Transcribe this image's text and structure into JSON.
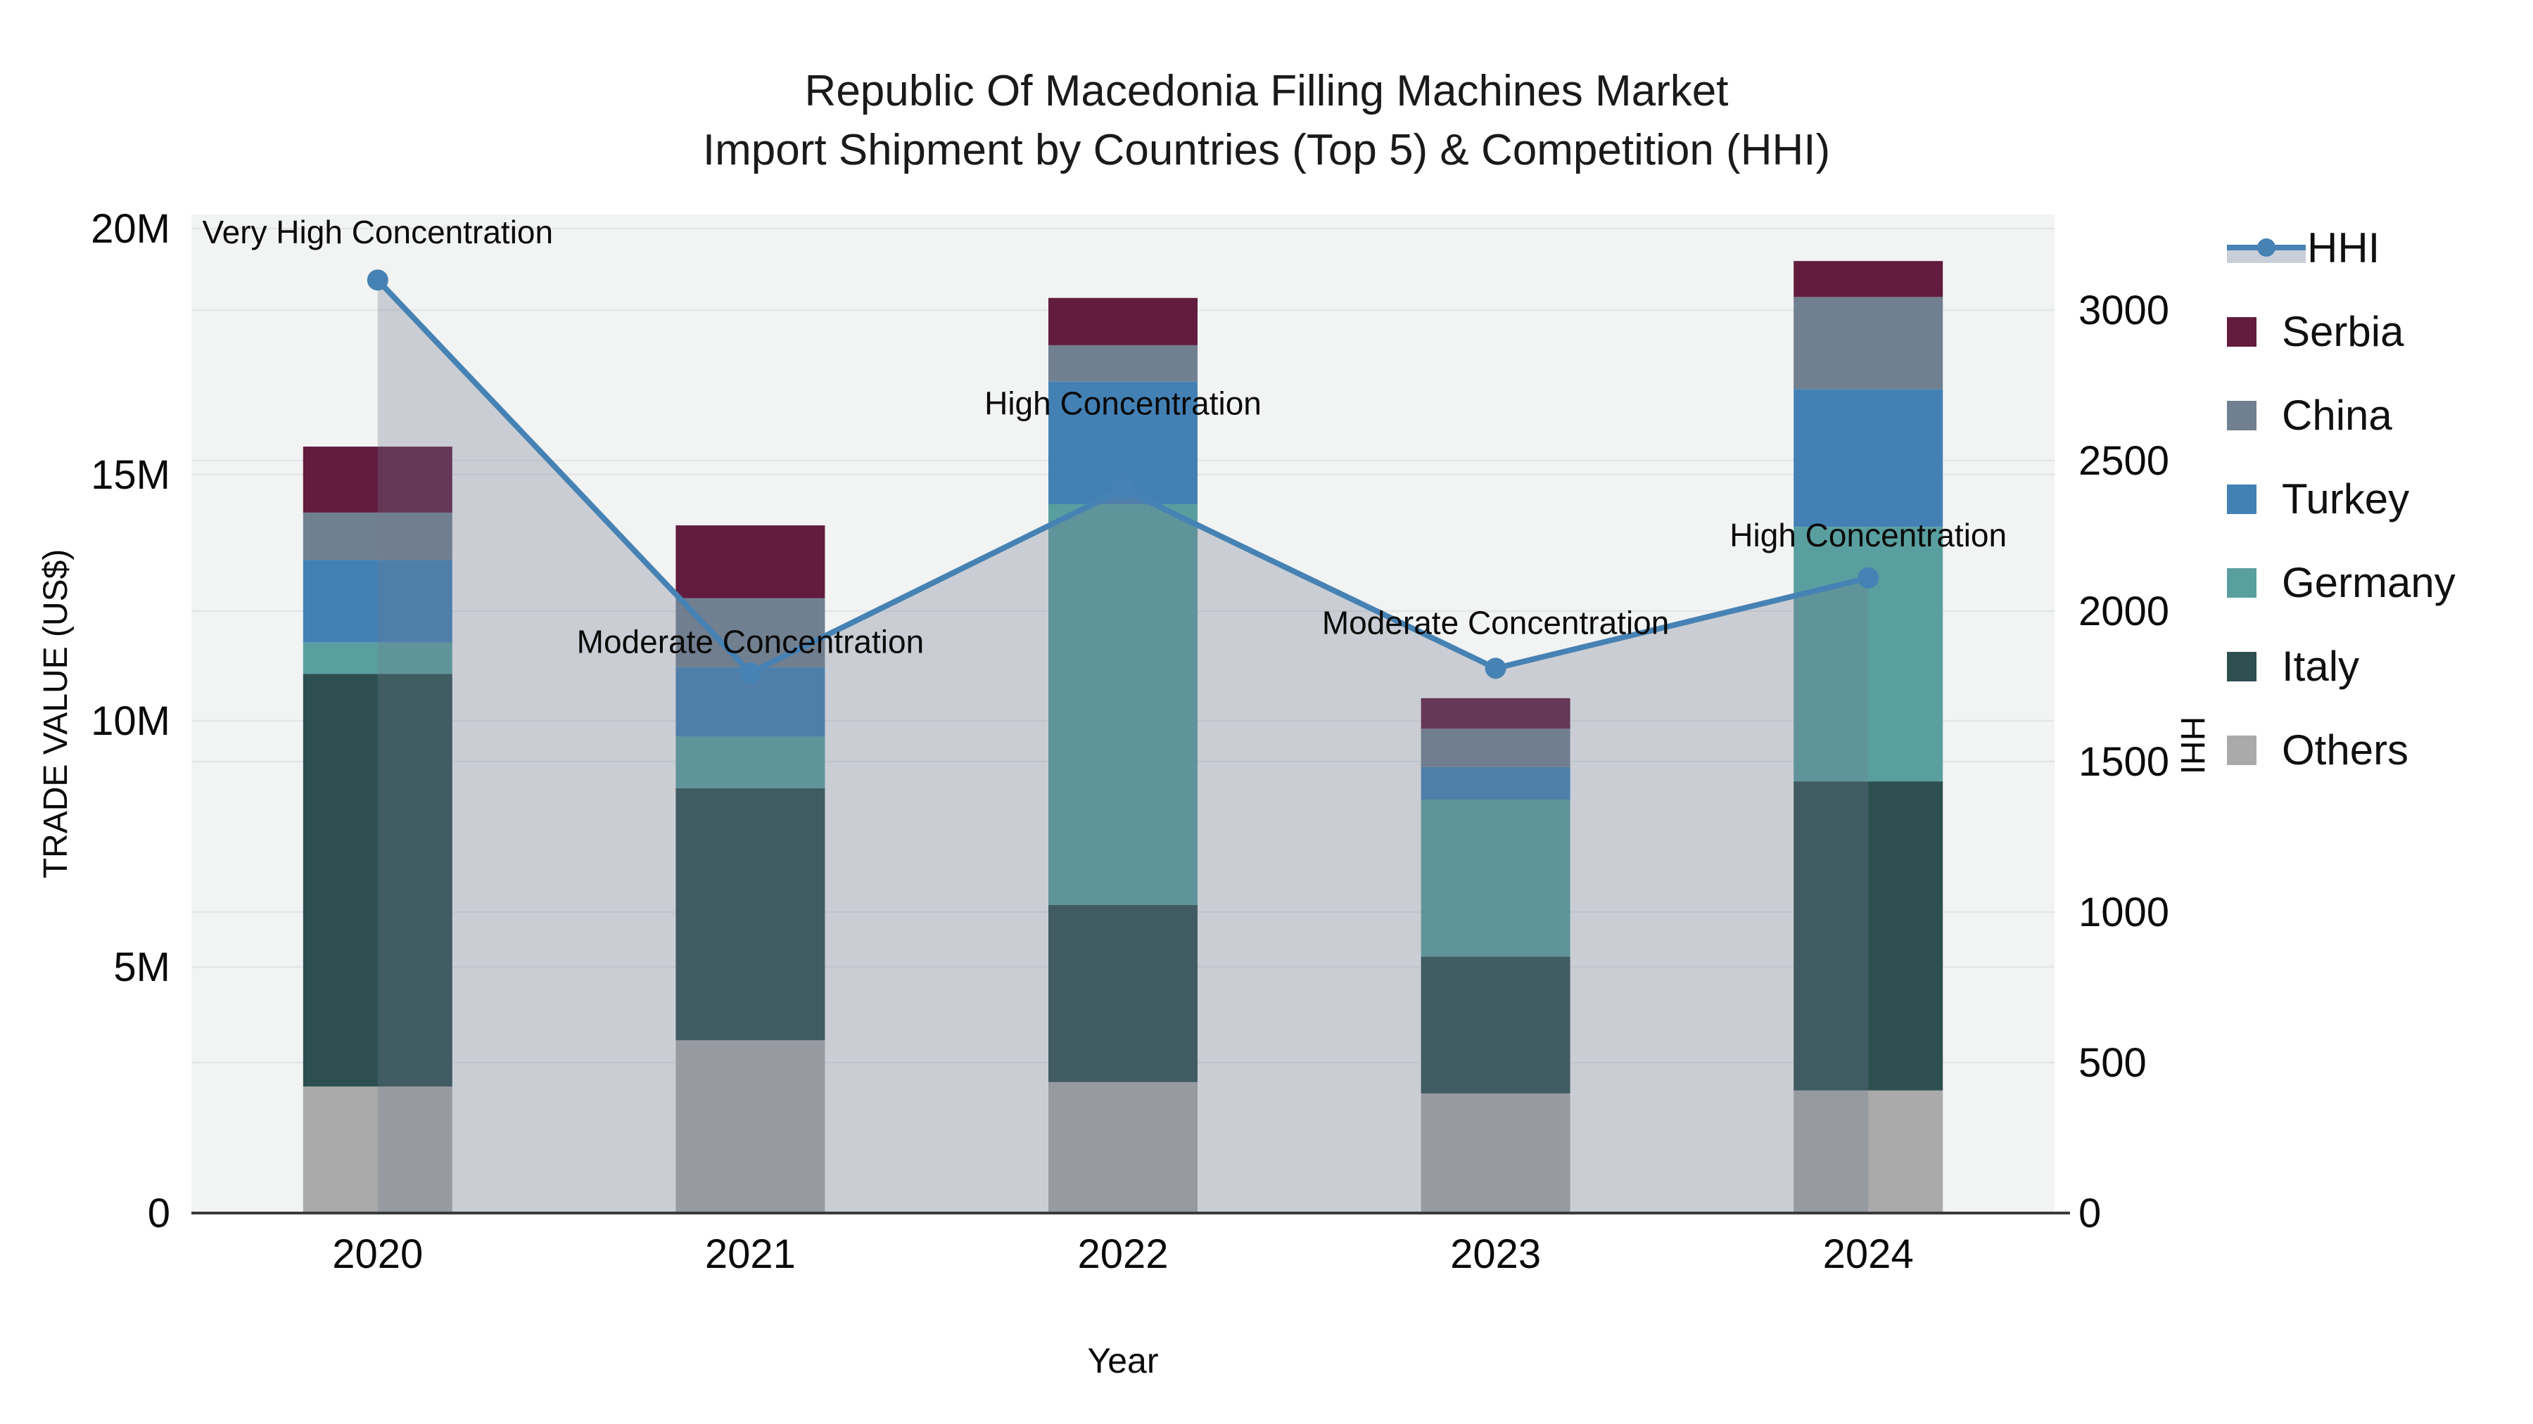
{
  "title": {
    "line1": "Republic Of Macedonia Filling Machines Market",
    "line2": "Import Shipment by Countries (Top 5) & Competition (HHI)"
  },
  "axes": {
    "y_left": {
      "title": "TRADE VALUE (US$)",
      "tick_labels": [
        "0",
        "5M",
        "10M",
        "15M",
        "20M"
      ],
      "tick_values_m": [
        0,
        5,
        10,
        15,
        20
      ],
      "max_m": 20
    },
    "y_right": {
      "title": "HHI",
      "tick_labels": [
        "0",
        "500",
        "1000",
        "1500",
        "2000",
        "2500",
        "3000"
      ],
      "tick_values": [
        0,
        500,
        1000,
        1500,
        2000,
        2500,
        3000
      ],
      "max": 3000
    },
    "x": {
      "title": "Year"
    }
  },
  "legend": {
    "items": [
      {
        "label": "HHI",
        "type": "line",
        "color": "#4682b4",
        "band_color": "#c9cfd9"
      },
      {
        "label": "Serbia",
        "type": "square",
        "color": "#611c3e"
      },
      {
        "label": "China",
        "type": "square",
        "color": "#718090"
      },
      {
        "label": "Turkey",
        "type": "square",
        "color": "#4381b5"
      },
      {
        "label": "Germany",
        "type": "square",
        "color": "#5a9fa0"
      },
      {
        "label": "Italy",
        "type": "square",
        "color": "#2d4f50"
      },
      {
        "label": "Others",
        "type": "square",
        "color": "#aaaaaa"
      }
    ]
  },
  "chart_data": {
    "type": "bar+line",
    "title": "Republic Of Macedonia Filling Machines Market — Import Shipment by Countries (Top 5) & Competition (HHI)",
    "categories": [
      "2020",
      "2021",
      "2022",
      "2023",
      "2024"
    ],
    "bar_unit": "million US$",
    "stack_order_bottom_to_top": [
      "Others",
      "Italy",
      "Germany",
      "Turkey",
      "China",
      "Serbia"
    ],
    "series": [
      {
        "name": "Serbia",
        "color": "#611c3e",
        "values_m": [
          1.34,
          1.48,
          0.96,
          0.62,
          0.73
        ]
      },
      {
        "name": "China",
        "color": "#718090",
        "values_m": [
          0.96,
          1.4,
          0.74,
          0.78,
          1.87
        ]
      },
      {
        "name": "Turkey",
        "color": "#4381b5",
        "values_m": [
          1.68,
          1.41,
          2.49,
          0.66,
          2.8
        ]
      },
      {
        "name": "Germany",
        "color": "#5a9fa0",
        "values_m": [
          0.64,
          1.05,
          8.14,
          3.19,
          5.17
        ]
      },
      {
        "name": "Italy",
        "color": "#2d4f50",
        "values_m": [
          8.38,
          5.12,
          3.6,
          2.78,
          6.28
        ]
      },
      {
        "name": "Others",
        "color": "#aaaaaa",
        "values_m": [
          2.57,
          3.51,
          2.66,
          2.43,
          2.49
        ]
      }
    ],
    "bar_totals_m": [
      15.57,
      13.97,
      18.59,
      10.46,
      19.34
    ],
    "hhi_line": {
      "name": "HHI",
      "axis": "right",
      "color": "#4682b4",
      "area_fill": "rgba(108,122,142,0.30)",
      "values": [
        3100,
        1795,
        2405,
        1810,
        2110
      ]
    },
    "annotations": [
      {
        "year": "2020",
        "text": "Very High Concentration"
      },
      {
        "year": "2021",
        "text": "Moderate Concentration"
      },
      {
        "year": "2022",
        "text": "High Concentration"
      },
      {
        "year": "2023",
        "text": "Moderate Concentration"
      },
      {
        "year": "2024",
        "text": "High Concentration"
      }
    ],
    "ylim_left_m": [
      0,
      20.3
    ],
    "ylim_right": [
      0,
      3320
    ],
    "grid": true,
    "legend_position": "right"
  },
  "style": {
    "plot_bg": "#f2f3f3",
    "grid_color": "#e4e6e8",
    "axis_line_color": "#3b3b3b",
    "text_color": "#111111"
  }
}
